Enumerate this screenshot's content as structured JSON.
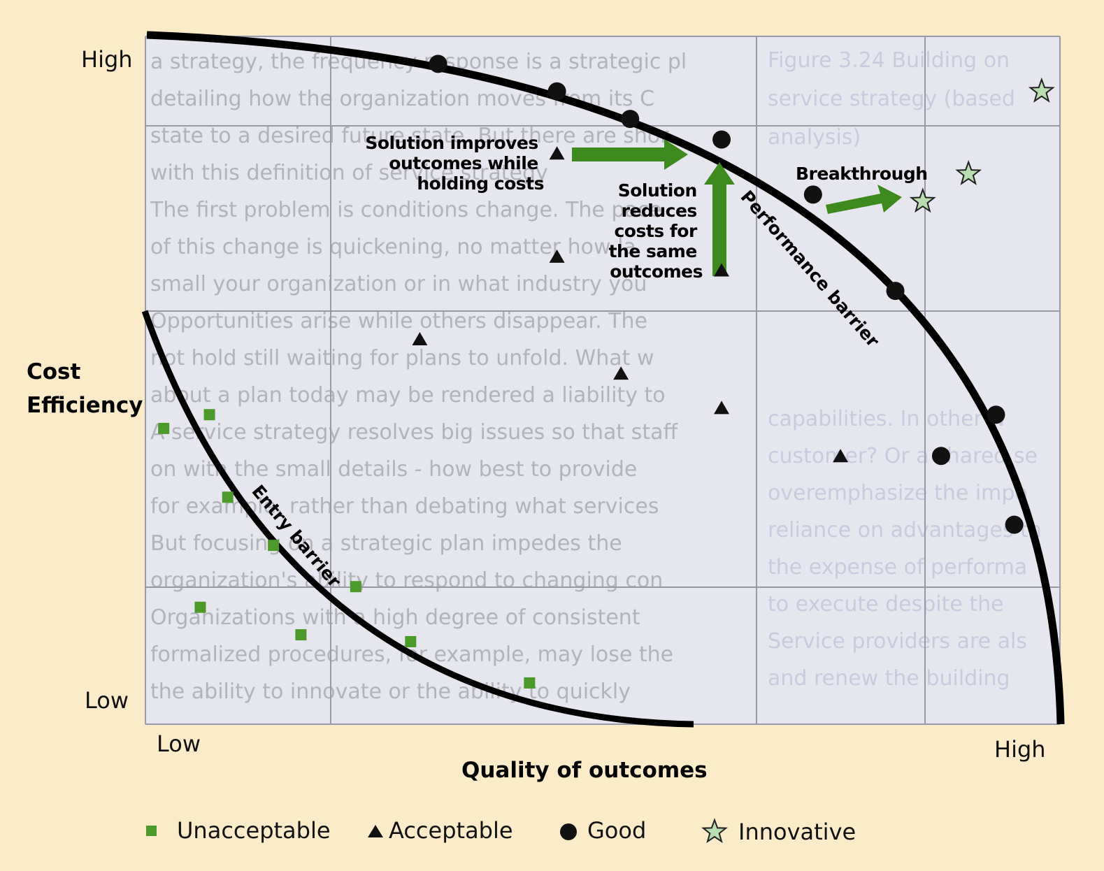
{
  "axes": {
    "y_title_line1": "Cost",
    "y_title_line2": "Efficiency",
    "y_high": "High",
    "y_low": "Low",
    "x_title": "Quality of outcomes",
    "x_low": "Low",
    "x_high": "High"
  },
  "annotations": {
    "improves": [
      "Solution improves",
      "outcomes while",
      "holding costs"
    ],
    "reduces": [
      "Solution",
      "reduces",
      "costs for",
      "the same",
      "outcomes"
    ],
    "breakthrough": "Breakthrough",
    "performance_barrier": "Performance barrier",
    "entry_barrier": "Entry barrier"
  },
  "legend": [
    {
      "label": "Unacceptable",
      "marker": "square",
      "color": "#4c9a2a"
    },
    {
      "label": "Acceptable",
      "marker": "triangle",
      "color": "#111111"
    },
    {
      "label": "Good",
      "marker": "circle",
      "color": "#111111"
    },
    {
      "label": "Innovative",
      "marker": "star",
      "color": "#b9dcb0"
    }
  ],
  "colors": {
    "background": "#fcebc9",
    "plot": "#e6e6ee",
    "arrow": "#3f8a1f",
    "unacceptable": "#4c9a2a"
  },
  "background_text": {
    "left": [
      "a strategy, the frequency response is a strategic pl",
      "detailing how the organization moves from its C",
      "state to a desired future state. But there are shor",
      "with this definition of service strategy",
      "The first problem is conditions change. The pace",
      "of this change is quickening, no matter how la",
      "small your organization or in what industry you",
      "Opportunities arise while others disappear. The",
      "not hold still waiting for plans to unfold. What w",
      "about a plan today may be rendered a liability to",
      "A service strategy resolves big issues so that staff",
      "on with the small details - how best to provide",
      "for example, rather than debating what services",
      "But focusing on a strategic plan impedes the",
      "organization's ability to respond to changing con",
      "Organizations with a high degree of consistent",
      "formalized procedures, for example, may lose the",
      "the ability to innovate or the ability to quickly"
    ],
    "right": [
      "Figure 3.24 Building on",
      "service strategy (based",
      "analysis)",
      "capabilities. In other w",
      "customer? Or a shared se",
      "overemphasize the impo",
      "reliance on advantages th",
      "the expense of performa",
      "to execute despite the",
      "Service providers are als",
      "and renew the building"
    ]
  },
  "chart_data": {
    "type": "scatter",
    "xlabel": "Quality of outcomes",
    "ylabel": "Cost Efficiency",
    "x_range": [
      "Low",
      "High"
    ],
    "y_range": [
      "Low",
      "High"
    ],
    "series": [
      {
        "name": "Unacceptable",
        "marker": "square",
        "points": [
          [
            0.02,
            0.43
          ],
          [
            0.07,
            0.45
          ],
          [
            0.09,
            0.33
          ],
          [
            0.14,
            0.26
          ],
          [
            0.06,
            0.17
          ],
          [
            0.17,
            0.13
          ],
          [
            0.23,
            0.2
          ],
          [
            0.29,
            0.12
          ],
          [
            0.42,
            0.06
          ]
        ]
      },
      {
        "name": "Acceptable",
        "marker": "triangle",
        "points": [
          [
            0.45,
            0.83
          ],
          [
            0.45,
            0.68
          ],
          [
            0.3,
            0.56
          ],
          [
            0.52,
            0.51
          ],
          [
            0.63,
            0.66
          ],
          [
            0.63,
            0.46
          ],
          [
            0.76,
            0.39
          ]
        ]
      },
      {
        "name": "Good",
        "marker": "circle",
        "points": [
          [
            0.32,
            0.96
          ],
          [
            0.45,
            0.92
          ],
          [
            0.53,
            0.88
          ],
          [
            0.63,
            0.85
          ],
          [
            0.73,
            0.77
          ],
          [
            0.82,
            0.63
          ],
          [
            0.93,
            0.45
          ],
          [
            0.87,
            0.39
          ],
          [
            0.95,
            0.29
          ]
        ]
      },
      {
        "name": "Innovative",
        "marker": "star",
        "points": [
          [
            0.98,
            0.92
          ],
          [
            0.9,
            0.8
          ],
          [
            0.85,
            0.76
          ]
        ]
      }
    ]
  }
}
